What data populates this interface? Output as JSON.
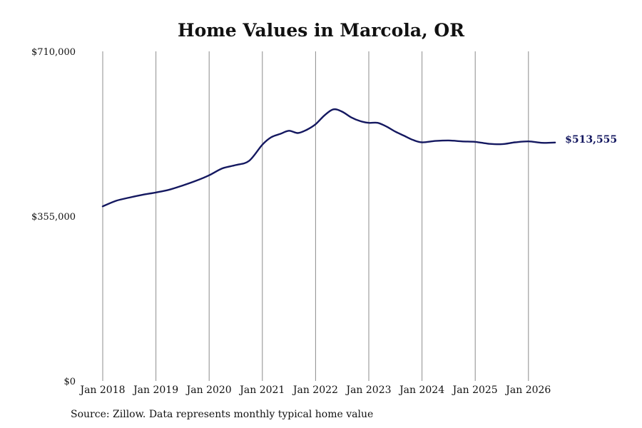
{
  "chart_data": {
    "type": "line",
    "title": "Home Values in Marcola, OR",
    "xlabel": "",
    "ylabel": "",
    "ylim": [
      0,
      710000
    ],
    "y_ticks": [
      "$0",
      "$355,000",
      "$710,000"
    ],
    "y_tick_values": [
      0,
      355000,
      710000
    ],
    "x_tick_labels": [
      "Jan 2018",
      "Jan 2019",
      "Jan 2020",
      "Jan 2021",
      "Jan 2022",
      "Jan 2023",
      "Jan 2024",
      "Jan 2025",
      "Jan 2026"
    ],
    "x_tick_values": [
      "2018-01",
      "2019-01",
      "2020-01",
      "2021-01",
      "2022-01",
      "2023-01",
      "2024-01",
      "2025-01",
      "2026-01"
    ],
    "xlim": [
      "2018-01",
      "2026-07"
    ],
    "grid": "vertical at x ticks",
    "line_color": "#141860",
    "end_label": "$513,555",
    "series": [
      {
        "x": [
          "2018-01",
          "2018-04",
          "2018-07",
          "2018-10",
          "2019-01",
          "2019-04",
          "2019-07",
          "2019-10",
          "2020-01",
          "2020-04",
          "2020-07",
          "2020-10",
          "2021-01",
          "2021-03",
          "2021-05",
          "2021-07",
          "2021-09",
          "2021-11",
          "2022-01",
          "2022-03",
          "2022-05",
          "2022-07",
          "2022-09",
          "2022-11",
          "2023-01",
          "2023-03",
          "2023-05",
          "2023-07",
          "2023-09",
          "2023-11",
          "2024-01",
          "2024-04",
          "2024-07",
          "2024-10",
          "2025-01",
          "2025-04",
          "2025-07",
          "2025-10",
          "2026-01",
          "2026-04",
          "2026-07"
        ],
        "y": [
          376000,
          388000,
          395000,
          401000,
          406000,
          412000,
          421000,
          431000,
          443000,
          458000,
          465000,
          474000,
          509000,
          525000,
          532000,
          539000,
          534000,
          541000,
          553000,
          572000,
          585000,
          580000,
          568000,
          560000,
          556000,
          556000,
          548000,
          537000,
          528000,
          519000,
          514000,
          517000,
          518000,
          516000,
          515000,
          511000,
          510000,
          514000,
          516000,
          513000,
          513555
        ]
      }
    ],
    "source": "Source: Zillow. Data represents monthly typical home value"
  }
}
